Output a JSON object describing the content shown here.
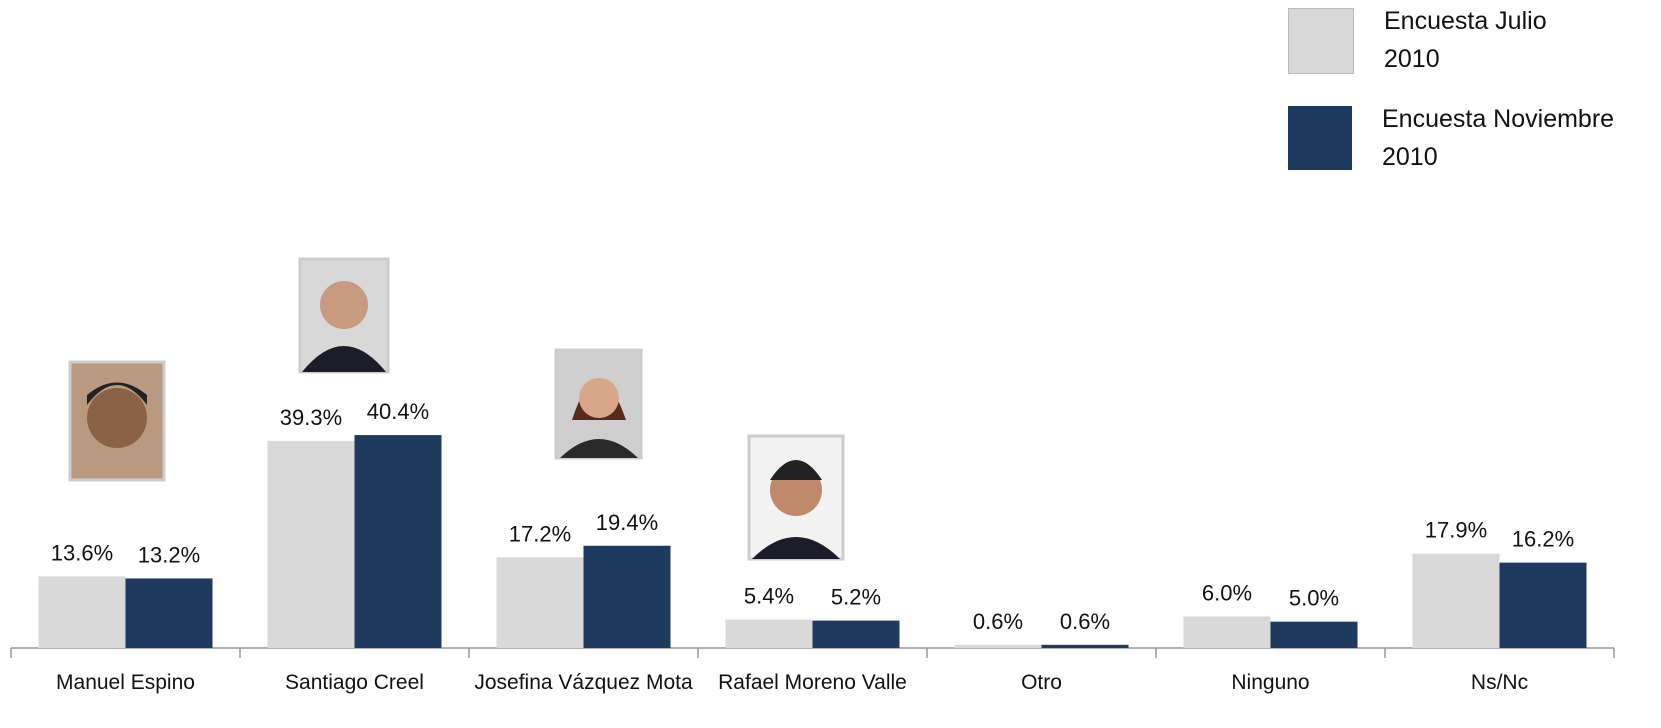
{
  "chart_data": {
    "type": "bar",
    "categories": [
      "Manuel Espino",
      "Santiago Creel",
      "Josefina Vázquez Mota",
      "Rafael Moreno Valle",
      "Otro",
      "Ninguno",
      "Ns/Nc"
    ],
    "series": [
      {
        "name": "Encuesta Julio 2010",
        "color": "#d9d9d9",
        "values": [
          13.6,
          39.3,
          17.2,
          5.4,
          0.6,
          6.0,
          17.9
        ],
        "value_labels": [
          "13.6%",
          "39.3%",
          "17.2%",
          "5.4%",
          "0.6%",
          "6.0%",
          "17.9%"
        ]
      },
      {
        "name": "Encuesta Noviembre 2010",
        "color": "#1f3a5f",
        "values": [
          13.2,
          40.4,
          19.4,
          5.2,
          0.6,
          5.0,
          16.2
        ],
        "value_labels": [
          "13.2%",
          "40.4%",
          "19.4%",
          "5.2%",
          "0.6%",
          "5.0%",
          "16.2%"
        ]
      }
    ],
    "legend": "top-right"
  }
}
